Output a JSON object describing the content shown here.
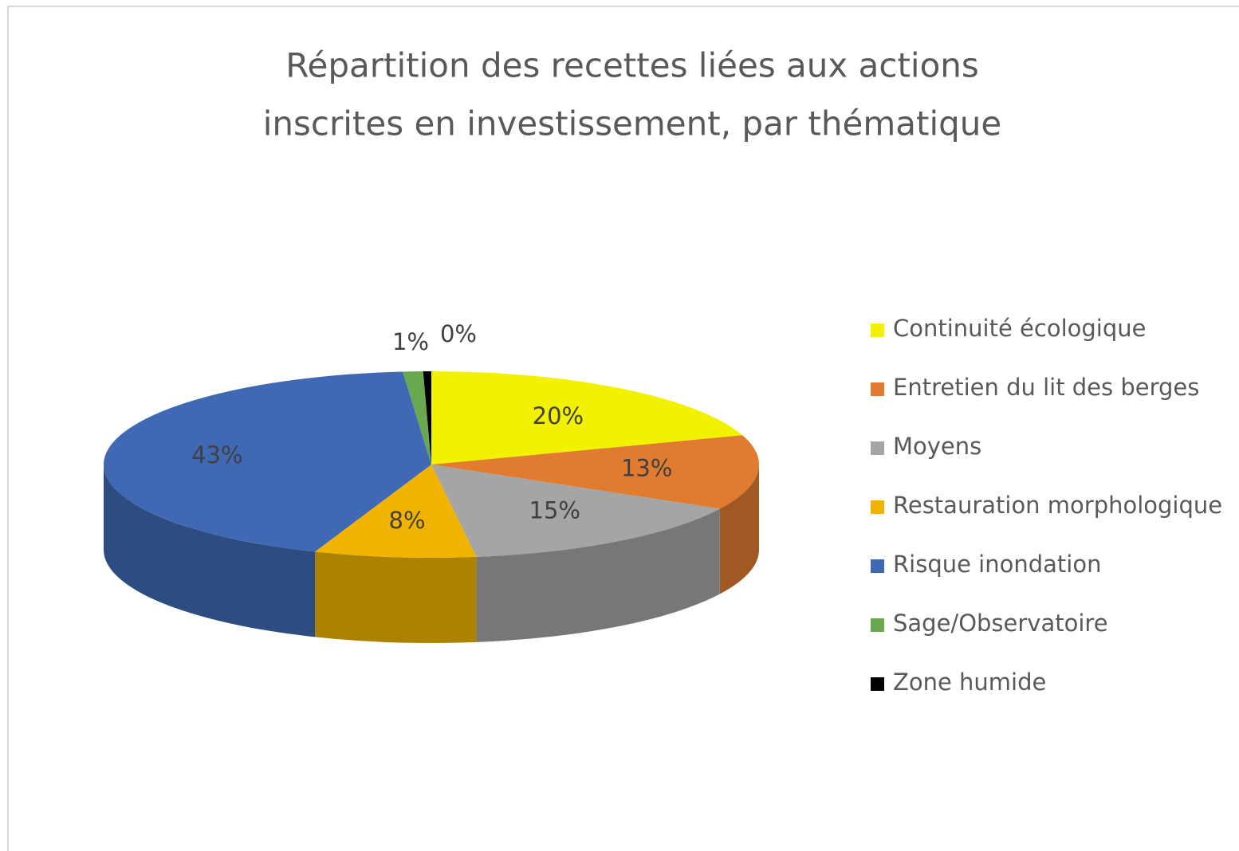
{
  "chart_data": {
    "type": "pie3d",
    "title": [
      "Répartition des recettes liées aux actions",
      "inscrites en investissement, par thématique"
    ],
    "categories": [
      "Continuité écologique",
      "Entretien du lit des berges",
      "Moyens",
      "Restauration morphologique",
      "Risque inondation",
      "Sage/Observatoire",
      "Zone humide"
    ],
    "values": [
      20,
      13,
      15,
      8,
      43,
      1,
      0.4
    ],
    "value_labels": [
      "20%",
      "13%",
      "15%",
      "8%",
      "43%",
      "1%",
      "0%"
    ],
    "colors": [
      "#f2f200",
      "#e07b30",
      "#a5a5a5",
      "#f0b400",
      "#3f69b5",
      "#6aa84f",
      "#000000"
    ],
    "legend": "right"
  }
}
